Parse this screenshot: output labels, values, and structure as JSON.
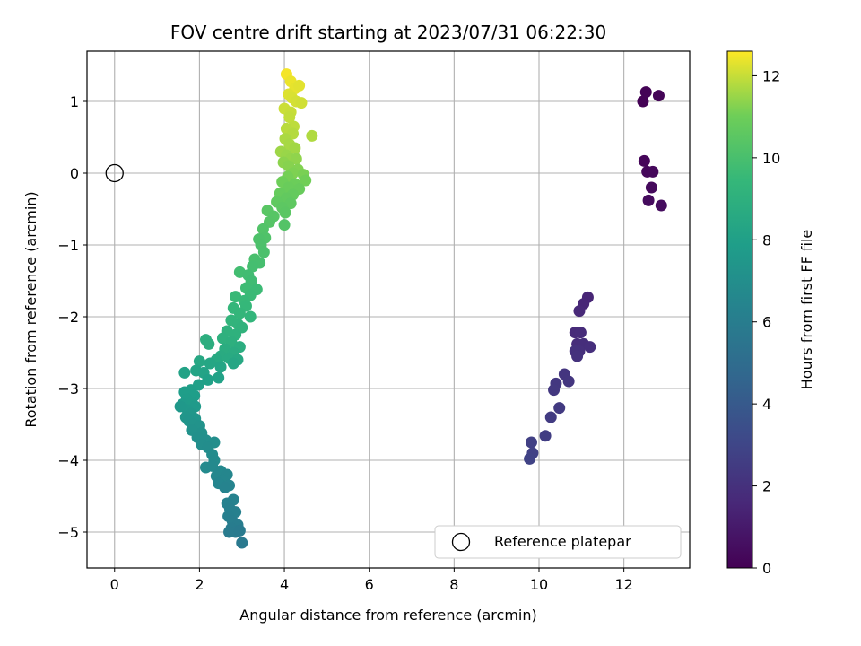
{
  "chart_data": {
    "type": "scatter",
    "title": "FOV centre drift starting at 2023/07/31 06:22:30",
    "xlabel": "Angular distance from reference (arcmin)",
    "ylabel": "Rotation from reference (arcmin)",
    "xlim": [
      -0.65,
      13.55
    ],
    "ylim": [
      -5.5,
      1.7
    ],
    "xticks": [
      0,
      2,
      4,
      6,
      8,
      10,
      12
    ],
    "yticks": [
      -5,
      -4,
      -3,
      -2,
      -1,
      0,
      1
    ],
    "grid": true,
    "legend": {
      "position": "bottom-right",
      "entries": [
        "Reference platepar"
      ]
    },
    "reference_point": {
      "x": 0,
      "y": 0
    },
    "colorbar": {
      "label": "Hours from first FF file",
      "range": [
        0,
        12.6
      ],
      "ticks": [
        0,
        2,
        4,
        6,
        8,
        10,
        12
      ],
      "colormap": "viridis"
    },
    "series_columns": [
      "x",
      "y",
      "hours"
    ],
    "points": [
      [
        12.45,
        1.0,
        0.05
      ],
      [
        12.52,
        1.13,
        0.1
      ],
      [
        12.82,
        1.08,
        0.15
      ],
      [
        12.48,
        0.17,
        0.2
      ],
      [
        12.55,
        0.02,
        0.25
      ],
      [
        12.68,
        0.02,
        0.3
      ],
      [
        12.65,
        -0.2,
        0.35
      ],
      [
        12.58,
        -0.38,
        0.4
      ],
      [
        12.88,
        -0.45,
        0.45
      ],
      [
        11.15,
        -1.73,
        1.5
      ],
      [
        11.05,
        -1.82,
        1.55
      ],
      [
        10.95,
        -1.92,
        1.6
      ],
      [
        10.85,
        -2.22,
        1.7
      ],
      [
        10.98,
        -2.22,
        1.75
      ],
      [
        10.9,
        -2.38,
        1.8
      ],
      [
        11.05,
        -2.38,
        1.85
      ],
      [
        11.2,
        -2.42,
        1.9
      ],
      [
        10.95,
        -2.48,
        1.95
      ],
      [
        10.85,
        -2.48,
        2.0
      ],
      [
        10.9,
        -2.55,
        2.05
      ],
      [
        10.6,
        -2.8,
        2.2
      ],
      [
        10.7,
        -2.9,
        2.25
      ],
      [
        10.4,
        -2.93,
        2.3
      ],
      [
        10.35,
        -3.02,
        2.35
      ],
      [
        10.48,
        -3.27,
        2.45
      ],
      [
        10.28,
        -3.4,
        2.5
      ],
      [
        10.15,
        -3.66,
        2.6
      ],
      [
        9.82,
        -3.75,
        2.7
      ],
      [
        9.85,
        -3.9,
        2.75
      ],
      [
        9.78,
        -3.98,
        2.8
      ],
      [
        4.05,
        1.38,
        12.5
      ],
      [
        4.15,
        1.28,
        12.4
      ],
      [
        4.25,
        1.18,
        12.35
      ],
      [
        4.35,
        1.22,
        12.3
      ],
      [
        4.1,
        1.1,
        12.25
      ],
      [
        4.18,
        1.05,
        12.2
      ],
      [
        4.28,
        1.0,
        12.15
      ],
      [
        4.4,
        0.98,
        12.1
      ],
      [
        4.0,
        0.9,
        12.05
      ],
      [
        4.15,
        0.85,
        12.0
      ],
      [
        4.12,
        0.78,
        11.95
      ],
      [
        4.22,
        0.65,
        11.9
      ],
      [
        4.05,
        0.62,
        11.85
      ],
      [
        4.2,
        0.55,
        11.8
      ],
      [
        4.65,
        0.52,
        11.75
      ],
      [
        4.02,
        0.48,
        11.7
      ],
      [
        4.12,
        0.4,
        11.65
      ],
      [
        4.25,
        0.35,
        11.6
      ],
      [
        3.92,
        0.3,
        11.55
      ],
      [
        4.05,
        0.25,
        11.5
      ],
      [
        4.15,
        0.2,
        11.45
      ],
      [
        4.28,
        0.2,
        11.4
      ],
      [
        3.98,
        0.15,
        11.35
      ],
      [
        4.1,
        0.1,
        11.3
      ],
      [
        4.32,
        0.05,
        11.25
      ],
      [
        4.2,
        0.0,
        11.2
      ],
      [
        4.45,
        -0.02,
        11.15
      ],
      [
        4.08,
        -0.05,
        11.1
      ],
      [
        4.5,
        -0.1,
        11.05
      ],
      [
        3.95,
        -0.12,
        11.0
      ],
      [
        4.25,
        -0.15,
        10.95
      ],
      [
        4.1,
        -0.2,
        10.9
      ],
      [
        4.35,
        -0.22,
        10.85
      ],
      [
        3.9,
        -0.28,
        10.8
      ],
      [
        4.2,
        -0.3,
        10.75
      ],
      [
        4.05,
        -0.35,
        10.7
      ],
      [
        3.82,
        -0.4,
        10.65
      ],
      [
        4.15,
        -0.42,
        10.6
      ],
      [
        3.95,
        -0.48,
        10.55
      ],
      [
        4.02,
        -0.55,
        10.5
      ],
      [
        3.6,
        -0.52,
        10.45
      ],
      [
        3.75,
        -0.6,
        10.4
      ],
      [
        3.65,
        -0.68,
        10.35
      ],
      [
        4.0,
        -0.72,
        10.3
      ],
      [
        3.5,
        -0.78,
        10.25
      ],
      [
        3.55,
        -0.9,
        10.2
      ],
      [
        3.4,
        -0.92,
        10.15
      ],
      [
        3.45,
        -1.0,
        10.1
      ],
      [
        3.52,
        -1.1,
        10.05
      ],
      [
        3.3,
        -1.2,
        10.0
      ],
      [
        3.42,
        -1.25,
        9.95
      ],
      [
        3.25,
        -1.3,
        9.9
      ],
      [
        2.95,
        -1.38,
        9.85
      ],
      [
        3.15,
        -1.42,
        9.8
      ],
      [
        3.22,
        -1.5,
        9.75
      ],
      [
        3.1,
        -1.6,
        9.7
      ],
      [
        3.35,
        -1.62,
        9.65
      ],
      [
        3.2,
        -1.7,
        9.6
      ],
      [
        2.85,
        -1.72,
        9.55
      ],
      [
        3.05,
        -1.78,
        9.5
      ],
      [
        3.1,
        -1.85,
        9.45
      ],
      [
        2.8,
        -1.88,
        9.4
      ],
      [
        2.95,
        -1.95,
        9.35
      ],
      [
        3.2,
        -2.0,
        9.3
      ],
      [
        2.75,
        -2.05,
        9.25
      ],
      [
        2.9,
        -2.1,
        9.2
      ],
      [
        3.0,
        -2.15,
        9.15
      ],
      [
        2.65,
        -2.2,
        9.1
      ],
      [
        2.85,
        -2.25,
        9.05
      ],
      [
        2.55,
        -2.3,
        9.0
      ],
      [
        2.75,
        -2.35,
        8.95
      ],
      [
        2.15,
        -2.32,
        8.9
      ],
      [
        2.22,
        -2.38,
        8.85
      ],
      [
        2.95,
        -2.42,
        8.8
      ],
      [
        2.6,
        -2.45,
        8.75
      ],
      [
        2.8,
        -2.5,
        8.7
      ],
      [
        2.5,
        -2.55,
        8.65
      ],
      [
        2.7,
        -2.58,
        8.6
      ],
      [
        2.4,
        -2.6,
        8.55
      ],
      [
        2.9,
        -2.6,
        8.5
      ],
      [
        2.0,
        -2.62,
        8.45
      ],
      [
        2.25,
        -2.65,
        8.4
      ],
      [
        2.8,
        -2.65,
        8.35
      ],
      [
        2.5,
        -2.7,
        8.3
      ],
      [
        1.92,
        -2.75,
        8.25
      ],
      [
        2.1,
        -2.78,
        8.2
      ],
      [
        1.65,
        -2.78,
        8.15
      ],
      [
        2.45,
        -2.85,
        8.1
      ],
      [
        2.2,
        -2.88,
        8.05
      ],
      [
        1.98,
        -2.95,
        8.0
      ],
      [
        1.8,
        -3.02,
        7.95
      ],
      [
        1.65,
        -3.05,
        7.9
      ],
      [
        1.88,
        -3.1,
        7.85
      ],
      [
        1.7,
        -3.15,
        7.8
      ],
      [
        1.82,
        -3.2,
        7.75
      ],
      [
        1.6,
        -3.22,
        7.7
      ],
      [
        1.9,
        -3.25,
        7.65
      ],
      [
        1.72,
        -3.3,
        7.6
      ],
      [
        1.55,
        -3.25,
        7.55
      ],
      [
        1.8,
        -3.35,
        7.5
      ],
      [
        1.68,
        -3.4,
        7.45
      ],
      [
        1.9,
        -3.42,
        7.4
      ],
      [
        1.75,
        -3.45,
        7.35
      ],
      [
        1.85,
        -3.5,
        7.3
      ],
      [
        2.0,
        -3.52,
        7.25
      ],
      [
        1.82,
        -3.58,
        7.2
      ],
      [
        2.05,
        -3.62,
        7.15
      ],
      [
        1.95,
        -3.68,
        7.1
      ],
      [
        2.15,
        -3.72,
        7.05
      ],
      [
        2.05,
        -3.78,
        7.0
      ],
      [
        2.35,
        -3.75,
        6.95
      ],
      [
        2.2,
        -3.82,
        6.9
      ],
      [
        2.3,
        -3.92,
        6.85
      ],
      [
        2.35,
        -4.0,
        6.8
      ],
      [
        2.15,
        -4.1,
        6.75
      ],
      [
        2.3,
        -4.08,
        6.7
      ],
      [
        2.5,
        -4.15,
        6.65
      ],
      [
        2.4,
        -4.22,
        6.6
      ],
      [
        2.65,
        -4.2,
        6.55
      ],
      [
        2.55,
        -4.28,
        6.5
      ],
      [
        2.45,
        -4.32,
        6.45
      ],
      [
        2.7,
        -4.35,
        6.4
      ],
      [
        2.6,
        -4.38,
        6.35
      ],
      [
        2.8,
        -4.55,
        6.3
      ],
      [
        2.65,
        -4.6,
        6.25
      ],
      [
        2.72,
        -4.68,
        6.2
      ],
      [
        2.85,
        -4.72,
        6.15
      ],
      [
        2.68,
        -4.78,
        6.1
      ],
      [
        2.78,
        -4.85,
        6.05
      ],
      [
        2.9,
        -4.9,
        6.0
      ],
      [
        2.75,
        -4.95,
        5.95
      ],
      [
        2.85,
        -5.0,
        5.9
      ],
      [
        2.7,
        -5.0,
        5.85
      ],
      [
        2.95,
        -4.98,
        5.8
      ],
      [
        3.0,
        -5.15,
        5.75
      ]
    ]
  }
}
